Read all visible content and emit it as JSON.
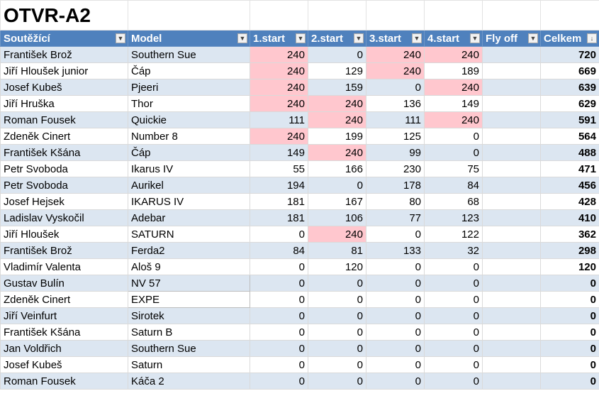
{
  "sheet_title": "OTVR-A2",
  "headers": [
    "Soutěžící",
    "Model",
    "1.start",
    "2.start",
    "3.start",
    "4.start",
    "Fly off",
    "Celkem"
  ],
  "sort_indicator": "↓",
  "colors": {
    "header_bg": "#4f81bd",
    "band_bg": "#dce6f1",
    "highlight_bg": "#ffc7ce"
  },
  "rows": [
    {
      "name": "František  Brož",
      "model": "Southern Sue",
      "s1": "240",
      "s2": "0",
      "s3": "240",
      "s4": "240",
      "flyoff": "",
      "total": "720",
      "hl": [
        1,
        0,
        1,
        1
      ]
    },
    {
      "name": "Jiří Hloušek junior",
      "model": "Čáp",
      "s1": "240",
      "s2": "129",
      "s3": "240",
      "s4": "189",
      "flyoff": "",
      "total": "669",
      "hl": [
        1,
        0,
        1,
        0
      ]
    },
    {
      "name": "Josef Kubeš",
      "model": "Pjeeri",
      "s1": "240",
      "s2": "159",
      "s3": "0",
      "s4": "240",
      "flyoff": "",
      "total": "639",
      "hl": [
        1,
        0,
        0,
        1
      ]
    },
    {
      "name": "Jiří Hruška",
      "model": "Thor",
      "s1": "240",
      "s2": "240",
      "s3": "136",
      "s4": "149",
      "flyoff": "",
      "total": "629",
      "hl": [
        1,
        1,
        0,
        0
      ]
    },
    {
      "name": "Roman Fousek",
      "model": "Quickie",
      "s1": "111",
      "s2": "240",
      "s3": "111",
      "s4": "240",
      "flyoff": "",
      "total": "591",
      "hl": [
        0,
        1,
        0,
        1
      ]
    },
    {
      "name": "Zdeněk Cinert",
      "model": "Number 8",
      "s1": "240",
      "s2": "199",
      "s3": "125",
      "s4": "0",
      "flyoff": "",
      "total": "564",
      "hl": [
        1,
        0,
        0,
        0
      ]
    },
    {
      "name": "František  Kšána",
      "model": "Čáp",
      "s1": "149",
      "s2": "240",
      "s3": "99",
      "s4": "0",
      "flyoff": "",
      "total": "488",
      "hl": [
        0,
        1,
        0,
        0
      ]
    },
    {
      "name": "Petr Svoboda",
      "model": "Ikarus IV",
      "s1": "55",
      "s2": "166",
      "s3": "230",
      "s4": "75",
      "flyoff": "",
      "total": "471",
      "hl": [
        0,
        0,
        0,
        0
      ]
    },
    {
      "name": "Petr Svoboda",
      "model": "Aurikel",
      "s1": "194",
      "s2": "0",
      "s3": "178",
      "s4": "84",
      "flyoff": "",
      "total": "456",
      "hl": [
        0,
        0,
        0,
        0
      ]
    },
    {
      "name": "Josef Hejsek",
      "model": "IKARUS IV",
      "s1": "181",
      "s2": "167",
      "s3": "80",
      "s4": "68",
      "flyoff": "",
      "total": "428",
      "hl": [
        0,
        0,
        0,
        0
      ]
    },
    {
      "name": "Ladislav Vyskočil",
      "model": "Adebar",
      "s1": "181",
      "s2": "106",
      "s3": "77",
      "s4": "123",
      "flyoff": "",
      "total": "410",
      "hl": [
        0,
        0,
        0,
        0
      ]
    },
    {
      "name": "Jiří Hloušek",
      "model": "SATURN",
      "s1": "0",
      "s2": "240",
      "s3": "0",
      "s4": "122",
      "flyoff": "",
      "total": "362",
      "hl": [
        0,
        1,
        0,
        0
      ]
    },
    {
      "name": "František  Brož",
      "model": "Ferda2",
      "s1": "84",
      "s2": "81",
      "s3": "133",
      "s4": "32",
      "flyoff": "",
      "total": "298",
      "hl": [
        0,
        0,
        0,
        0
      ]
    },
    {
      "name": "Vladimír Valenta",
      "model": "Aloš 9",
      "s1": "0",
      "s2": "120",
      "s3": "0",
      "s4": "0",
      "flyoff": "",
      "total": "120",
      "hl": [
        0,
        0,
        0,
        0
      ]
    },
    {
      "name": "Gustav Bulín",
      "model": "NV 57",
      "s1": "0",
      "s2": "0",
      "s3": "0",
      "s4": "0",
      "flyoff": "",
      "total": "0",
      "hl": [
        0,
        0,
        0,
        0
      ],
      "boxed": true
    },
    {
      "name": "Zdeněk Cinert",
      "model": "EXPE",
      "s1": "0",
      "s2": "0",
      "s3": "0",
      "s4": "0",
      "flyoff": "",
      "total": "0",
      "hl": [
        0,
        0,
        0,
        0
      ],
      "boxed": true
    },
    {
      "name": "Jiří Veinfurt",
      "model": "Sirotek",
      "s1": "0",
      "s2": "0",
      "s3": "0",
      "s4": "0",
      "flyoff": "",
      "total": "0",
      "hl": [
        0,
        0,
        0,
        0
      ]
    },
    {
      "name": "František  Kšána",
      "model": "Saturn B",
      "s1": "0",
      "s2": "0",
      "s3": "0",
      "s4": "0",
      "flyoff": "",
      "total": "0",
      "hl": [
        0,
        0,
        0,
        0
      ]
    },
    {
      "name": "Jan  Voldřich",
      "model": "Southern Sue",
      "s1": "0",
      "s2": "0",
      "s3": "0",
      "s4": "0",
      "flyoff": "",
      "total": "0",
      "hl": [
        0,
        0,
        0,
        0
      ]
    },
    {
      "name": "Josef Kubeš",
      "model": "Saturn",
      "s1": "0",
      "s2": "0",
      "s3": "0",
      "s4": "0",
      "flyoff": "",
      "total": "0",
      "hl": [
        0,
        0,
        0,
        0
      ]
    },
    {
      "name": "Roman Fousek",
      "model": "Káča 2",
      "s1": "0",
      "s2": "0",
      "s3": "0",
      "s4": "0",
      "flyoff": "",
      "total": "0",
      "hl": [
        0,
        0,
        0,
        0
      ]
    }
  ]
}
